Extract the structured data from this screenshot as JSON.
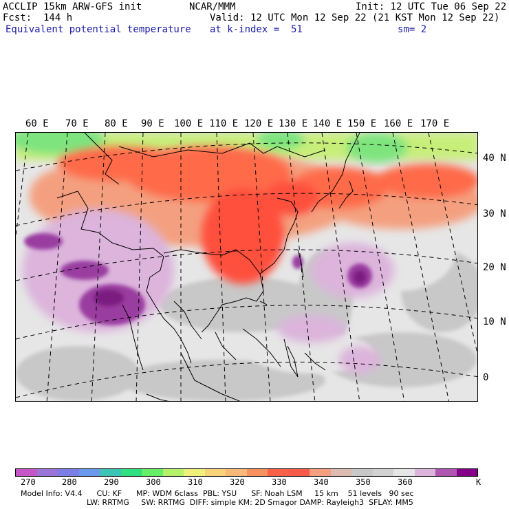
{
  "header": {
    "left_line1": "ACCLIP 15km ARW-GFS init",
    "left_line2": "Fcst:  144 h",
    "field_name": "Equivalent potential temperature",
    "center_line1": "NCAR/MMM",
    "init_line": "Init: 12 UTC Tue 06 Sep 22",
    "valid_line": "Valid: 12 UTC Mon 12 Sep 22 (21 KST Mon 12 Sep 22)",
    "level_line": "at k-index =  51",
    "smooth_line": "sm= 2"
  },
  "map": {
    "lon_labels": [
      "60 E",
      "70 E",
      "80 E",
      "90 E",
      "100 E",
      "110 E",
      "120 E",
      "130 E",
      "140 E",
      "150 E",
      "160 E",
      "170 E"
    ],
    "lat_labels": [
      "40 N",
      "30 N",
      "20 N",
      "10 N",
      "0"
    ],
    "colors": {
      "cold_north": "#7ee47e",
      "warm_band": "#ff6a4a",
      "warm_core": "#ff4f3c",
      "salmon": "#f4a080",
      "grey": "#c8c8c8",
      "light_grey": "#e6e6e6",
      "lavender": "#dcb4dc",
      "purple": "#9a3ca0",
      "deep_purple": "#7a1a80"
    }
  },
  "colorbar": {
    "colors": [
      "#c656c8",
      "#9a74d6",
      "#7a7ee6",
      "#6a98ec",
      "#3cc4b4",
      "#2ee080",
      "#66ee66",
      "#b4f26a",
      "#eef07a",
      "#f8d278",
      "#f8b878",
      "#f89060",
      "#f86048",
      "#f85a4a",
      "#f4a080",
      "#dcbcb0",
      "#c8c8c8",
      "#d2d2d2",
      "#e6e6e6",
      "#dcb4dc",
      "#b056b0",
      "#840088"
    ],
    "labels": [
      "270",
      "280",
      "290",
      "300",
      "310",
      "320",
      "330",
      "340",
      "350",
      "360",
      "K"
    ]
  },
  "footer": {
    "line1": "Model Info: V4.4      CU: KF      MP: WDM 6class  PBL: YSU      SF: Noah LSM     15 km    51 levels   90 sec",
    "line2": "LW: RRTMG     SW: RRTMG  DIFF: simple KM: 2D Smagor DAMP: Rayleigh3  SFLAY: MM5"
  }
}
